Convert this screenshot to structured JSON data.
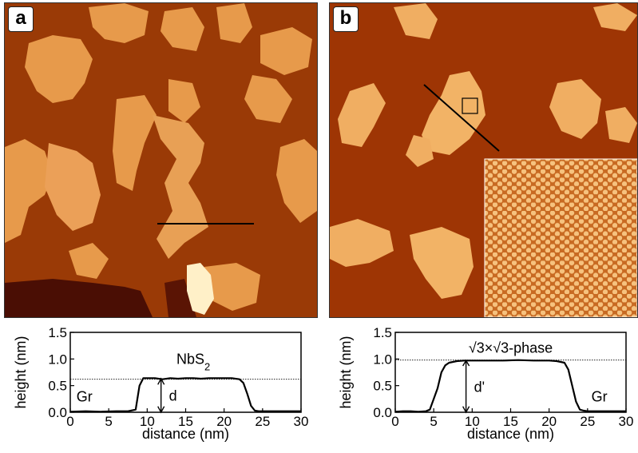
{
  "panels": [
    {
      "letter": "a"
    },
    {
      "letter": "b"
    }
  ],
  "chart_data": [
    {
      "type": "line",
      "panel": "a",
      "xlabel": "distance (nm)",
      "ylabel": "height (nm)",
      "xlim": [
        0,
        30
      ],
      "ylim": [
        0,
        1.5
      ],
      "xticks": [
        "0",
        "5",
        "10",
        "15",
        "20",
        "25",
        "30"
      ],
      "yticks": [
        "0.0",
        "0.5",
        "1.0",
        "1.5"
      ],
      "reference_line_y": 0.62,
      "annotations": {
        "material": "NbS",
        "material_sub": "2",
        "substrate": "Gr",
        "step": "d"
      },
      "x": [
        0,
        2,
        4,
        6,
        7.5,
        8.5,
        9.0,
        9.5,
        10,
        11,
        12,
        13,
        14,
        15,
        16,
        17,
        18,
        19,
        20,
        21,
        22,
        22.5,
        23,
        23.5,
        24,
        24.5,
        25,
        26,
        28,
        30
      ],
      "y": [
        0.01,
        0.02,
        0.01,
        0.02,
        0.02,
        0.05,
        0.5,
        0.64,
        0.64,
        0.64,
        0.62,
        0.64,
        0.63,
        0.64,
        0.64,
        0.63,
        0.64,
        0.64,
        0.64,
        0.64,
        0.62,
        0.55,
        0.35,
        0.12,
        0.03,
        0.02,
        0.02,
        0.02,
        0.02,
        0.02
      ]
    },
    {
      "type": "line",
      "panel": "b",
      "xlabel": "distance (nm)",
      "ylabel": "height (nm)",
      "xlim": [
        0,
        30
      ],
      "ylim": [
        0,
        1.5
      ],
      "xticks": [
        "0",
        "5",
        "10",
        "15",
        "20",
        "25",
        "30"
      ],
      "yticks": [
        "0.0",
        "0.5",
        "1.0",
        "1.5"
      ],
      "reference_line_y": 0.98,
      "annotations": {
        "phase": "√3×√3-phase",
        "substrate": "Gr",
        "step": "d'"
      },
      "x": [
        0,
        1,
        2,
        3,
        4,
        4.5,
        5,
        5.5,
        6,
        6.5,
        7,
        8,
        9,
        10,
        12,
        14,
        16,
        18,
        20,
        21,
        22,
        22.5,
        23,
        23.5,
        24,
        24.5,
        25,
        26,
        28,
        30
      ],
      "y": [
        0.01,
        0.02,
        0.02,
        0.01,
        0.02,
        0.05,
        0.25,
        0.45,
        0.75,
        0.88,
        0.93,
        0.96,
        0.97,
        0.97,
        0.97,
        0.97,
        0.98,
        0.97,
        0.97,
        0.96,
        0.93,
        0.8,
        0.5,
        0.2,
        0.05,
        0.03,
        0.02,
        0.02,
        0.02,
        0.02
      ]
    }
  ]
}
